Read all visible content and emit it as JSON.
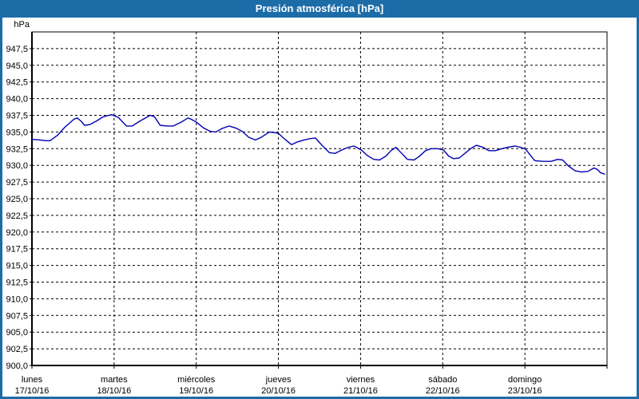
{
  "window": {
    "title": "Presión atmosférica [hPa]"
  },
  "colors": {
    "titlebar_bg": "#1C6CA8",
    "window_border": "#1C6CA8",
    "panel_bg": "#FFFFFF",
    "grid": "#000000",
    "axis": "#000000",
    "text": "#000000",
    "title_text": "#FFFFFF",
    "series": "#0000B4"
  },
  "chart_data": {
    "type": "line",
    "title": "Presión atmosférica [hPa]",
    "ylabel": "hPa",
    "ylim": [
      900,
      950
    ],
    "grid": {
      "horizontal_dashed": true,
      "vertical_dashed": true
    },
    "legend_position": "none",
    "y_ticks": [
      {
        "label": "947,5",
        "value": 947.5
      },
      {
        "label": "945,0",
        "value": 945.0
      },
      {
        "label": "942,5",
        "value": 942.5
      },
      {
        "label": "940,0",
        "value": 940.0
      },
      {
        "label": "937,5",
        "value": 937.5
      },
      {
        "label": "935,0",
        "value": 935.0
      },
      {
        "label": "932,5",
        "value": 932.5
      },
      {
        "label": "930,0",
        "value": 930.0
      },
      {
        "label": "927,5",
        "value": 927.5
      },
      {
        "label": "925,0",
        "value": 925.0
      },
      {
        "label": "922,5",
        "value": 922.5
      },
      {
        "label": "920,0",
        "value": 920.0
      },
      {
        "label": "917,5",
        "value": 917.5
      },
      {
        "label": "915,0",
        "value": 915.0
      },
      {
        "label": "912,5",
        "value": 912.5
      },
      {
        "label": "910,0",
        "value": 910.0
      },
      {
        "label": "907,5",
        "value": 907.5
      },
      {
        "label": "905,0",
        "value": 905.0
      },
      {
        "label": "902,5",
        "value": 902.5
      },
      {
        "label": "900,0",
        "value": 900.0
      }
    ],
    "x_days": [
      {
        "name": "lunes",
        "date": "17/10/16"
      },
      {
        "name": "martes",
        "date": "18/10/16"
      },
      {
        "name": "miércoles",
        "date": "19/10/16"
      },
      {
        "name": "jueves",
        "date": "20/10/16"
      },
      {
        "name": "viernes",
        "date": "21/10/16"
      },
      {
        "name": "sábado",
        "date": "22/10/16"
      },
      {
        "name": "domingo",
        "date": "23/10/16"
      }
    ],
    "series": [
      {
        "name": "Presión atmosférica",
        "color": "#0000B4",
        "points": [
          [
            0.0,
            933.9
          ],
          [
            0.1,
            933.8
          ],
          [
            0.17,
            933.7
          ],
          [
            0.22,
            933.7
          ],
          [
            0.31,
            934.5
          ],
          [
            0.4,
            935.7
          ],
          [
            0.51,
            936.9
          ],
          [
            0.55,
            937.1
          ],
          [
            0.6,
            936.6
          ],
          [
            0.64,
            936.0
          ],
          [
            0.7,
            936.1
          ],
          [
            0.78,
            936.6
          ],
          [
            0.87,
            937.3
          ],
          [
            0.97,
            937.6
          ],
          [
            1.05,
            937.2
          ],
          [
            1.15,
            935.9
          ],
          [
            1.22,
            935.9
          ],
          [
            1.31,
            936.6
          ],
          [
            1.44,
            937.5
          ],
          [
            1.49,
            937.3
          ],
          [
            1.56,
            936.0
          ],
          [
            1.65,
            935.9
          ],
          [
            1.72,
            935.9
          ],
          [
            1.82,
            936.5
          ],
          [
            1.9,
            937.1
          ],
          [
            1.94,
            936.9
          ],
          [
            2.0,
            936.5
          ],
          [
            2.09,
            935.6
          ],
          [
            2.17,
            935.1
          ],
          [
            2.24,
            935.0
          ],
          [
            2.31,
            935.5
          ],
          [
            2.4,
            935.9
          ],
          [
            2.48,
            935.6
          ],
          [
            2.56,
            935.1
          ],
          [
            2.64,
            934.2
          ],
          [
            2.72,
            933.8
          ],
          [
            2.79,
            934.2
          ],
          [
            2.89,
            935.0
          ],
          [
            2.95,
            934.9
          ],
          [
            3.0,
            934.8
          ],
          [
            3.08,
            933.9
          ],
          [
            3.16,
            933.1
          ],
          [
            3.23,
            933.5
          ],
          [
            3.31,
            933.8
          ],
          [
            3.38,
            934.0
          ],
          [
            3.45,
            934.1
          ],
          [
            3.53,
            933.0
          ],
          [
            3.62,
            931.9
          ],
          [
            3.69,
            931.8
          ],
          [
            3.77,
            932.3
          ],
          [
            3.85,
            932.7
          ],
          [
            3.92,
            932.9
          ],
          [
            4.01,
            932.3
          ],
          [
            4.08,
            931.5
          ],
          [
            4.16,
            930.9
          ],
          [
            4.23,
            930.8
          ],
          [
            4.31,
            931.4
          ],
          [
            4.37,
            932.2
          ],
          [
            4.43,
            932.7
          ],
          [
            4.5,
            931.8
          ],
          [
            4.57,
            930.9
          ],
          [
            4.65,
            930.8
          ],
          [
            4.71,
            931.3
          ],
          [
            4.79,
            932.2
          ],
          [
            4.86,
            932.5
          ],
          [
            4.94,
            932.5
          ],
          [
            5.01,
            932.3
          ],
          [
            5.07,
            931.4
          ],
          [
            5.13,
            931.0
          ],
          [
            5.2,
            931.1
          ],
          [
            5.28,
            931.9
          ],
          [
            5.35,
            932.6
          ],
          [
            5.41,
            933.0
          ],
          [
            5.49,
            932.7
          ],
          [
            5.56,
            932.2
          ],
          [
            5.64,
            932.2
          ],
          [
            5.72,
            932.5
          ],
          [
            5.79,
            932.7
          ],
          [
            5.88,
            932.9
          ],
          [
            5.95,
            932.7
          ],
          [
            6.01,
            932.4
          ],
          [
            6.08,
            931.3
          ],
          [
            6.12,
            930.7
          ],
          [
            6.22,
            930.6
          ],
          [
            6.32,
            930.6
          ],
          [
            6.4,
            930.9
          ],
          [
            6.46,
            930.8
          ],
          [
            6.53,
            929.9
          ],
          [
            6.61,
            929.2
          ],
          [
            6.69,
            929.0
          ],
          [
            6.77,
            929.1
          ],
          [
            6.84,
            929.6
          ],
          [
            6.88,
            929.4
          ],
          [
            6.92,
            928.9
          ],
          [
            6.97,
            928.7
          ]
        ]
      }
    ]
  }
}
